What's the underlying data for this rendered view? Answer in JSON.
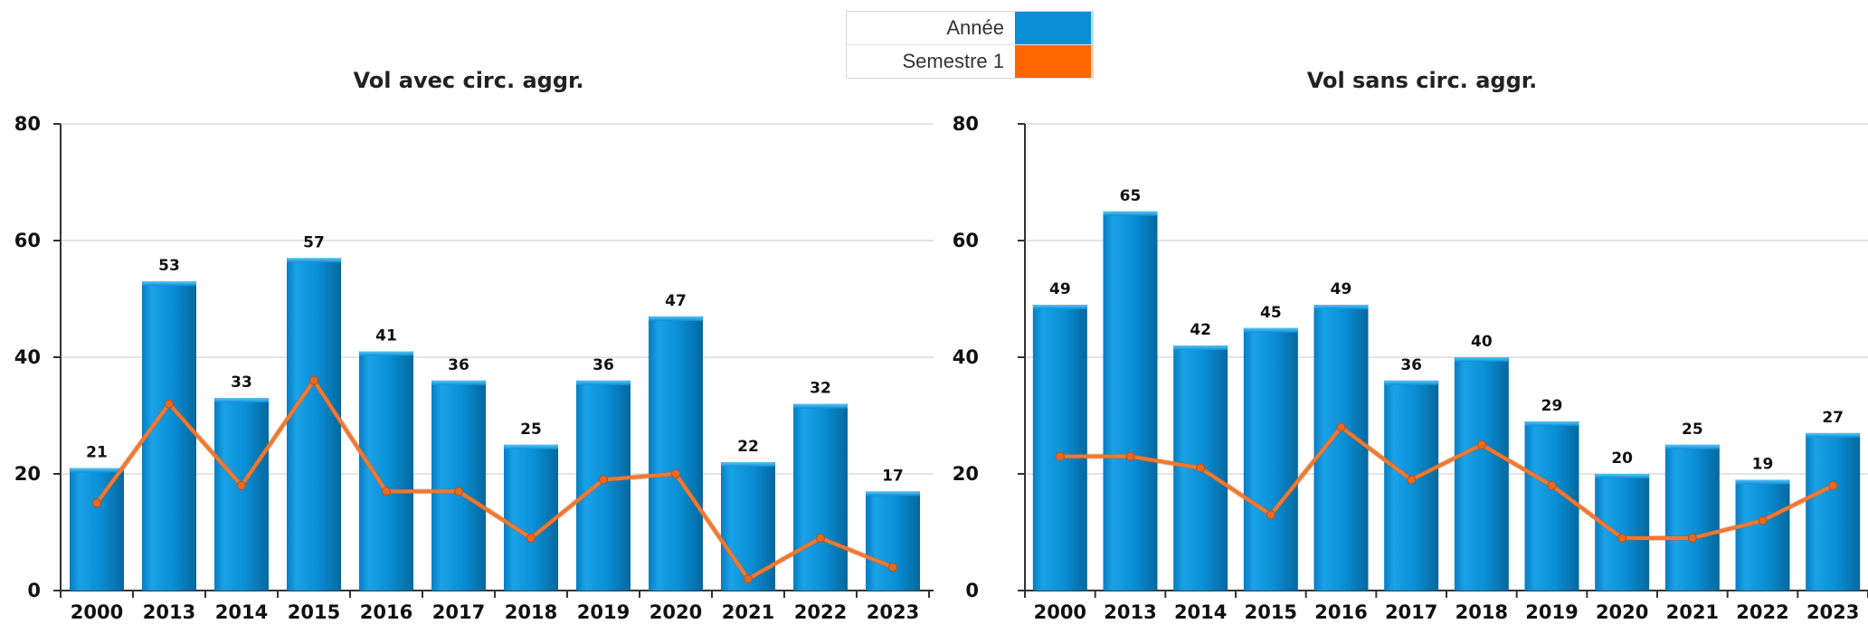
{
  "legend": [
    {
      "label": "Année",
      "color": "#0a8fd6"
    },
    {
      "label": "Semestre 1",
      "color": "#ff6600"
    }
  ],
  "chart_data": [
    {
      "type": "bar",
      "title": "Vol avec circ. aggr.",
      "categories": [
        "2000",
        "2013",
        "2014",
        "2015",
        "2016",
        "2017",
        "2018",
        "2019",
        "2020",
        "2021",
        "2022",
        "2023"
      ],
      "series": [
        {
          "name": "Année",
          "type": "bar",
          "color": "#0a8fd6",
          "values": [
            21,
            53,
            33,
            57,
            41,
            36,
            25,
            36,
            47,
            22,
            32,
            17
          ]
        },
        {
          "name": "Semestre 1",
          "type": "line",
          "color": "#f07830",
          "values": [
            15,
            32,
            18,
            36,
            17,
            17,
            9,
            19,
            20,
            2,
            9,
            4
          ]
        }
      ],
      "yticks": [
        0,
        20,
        40,
        60,
        80
      ],
      "ylim": [
        0,
        80
      ],
      "grid": true
    },
    {
      "type": "bar",
      "title": "Vol sans circ. aggr.",
      "categories": [
        "2000",
        "2013",
        "2014",
        "2015",
        "2016",
        "2017",
        "2018",
        "2019",
        "2020",
        "2021",
        "2022",
        "2023"
      ],
      "series": [
        {
          "name": "Année",
          "type": "bar",
          "color": "#0a8fd6",
          "values": [
            49,
            65,
            42,
            45,
            49,
            36,
            40,
            29,
            20,
            25,
            19,
            27
          ]
        },
        {
          "name": "Semestre 1",
          "type": "line",
          "color": "#f07830",
          "values": [
            23,
            23,
            21,
            13,
            28,
            19,
            25,
            18,
            9,
            9,
            12,
            18
          ]
        }
      ],
      "yticks": [
        0,
        20,
        40,
        60,
        80
      ],
      "ylim": [
        0,
        80
      ],
      "grid": true
    }
  ]
}
